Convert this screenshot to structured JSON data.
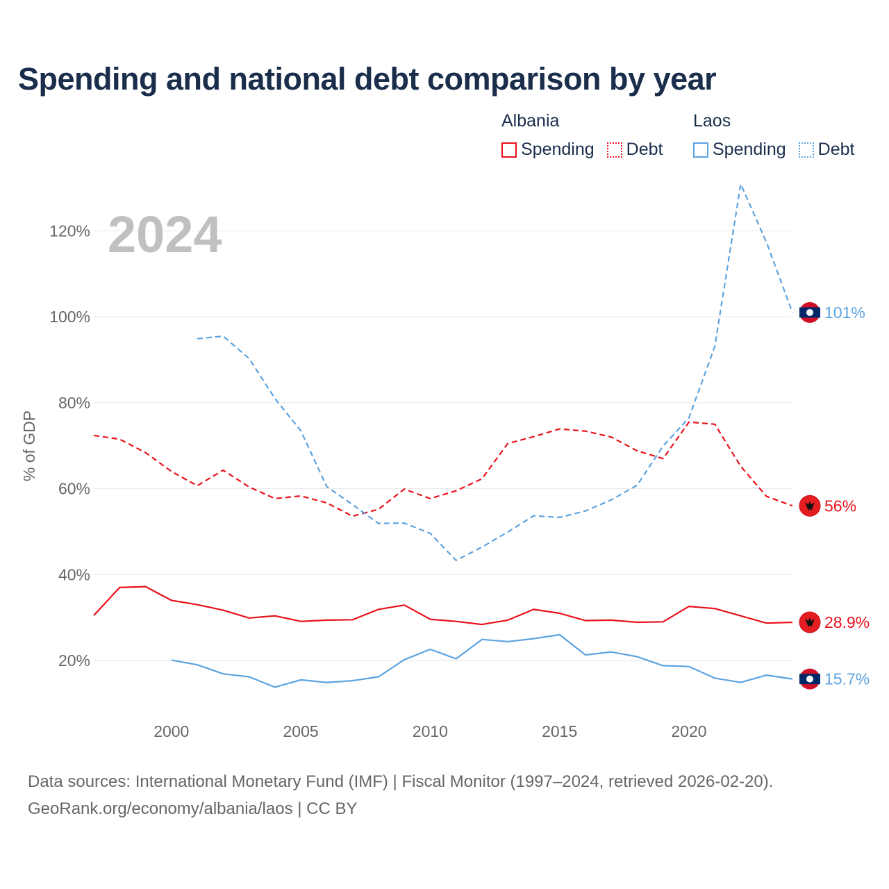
{
  "title": "Spending and national debt comparison by year",
  "legend": {
    "groups": [
      {
        "country": "Albania",
        "items": [
          "Spending",
          "Debt"
        ]
      },
      {
        "country": "Laos",
        "items": [
          "Spending",
          "Debt"
        ]
      }
    ]
  },
  "colors": {
    "albania": "#e8111c",
    "laos": "#5ba3e0",
    "year_watermark": "#c0c0c0"
  },
  "source_line1": "Data sources: International Monetary Fund (IMF) | Fiscal Monitor (1997–2024, retrieved 2026-02-20).",
  "source_line2": "GeoRank.org/economy/albania/laos | CC BY",
  "chart_data": {
    "type": "line",
    "title": "Spending and national debt comparison by year",
    "year_label": "2024",
    "ylabel": "% of GDP",
    "xlabel": "",
    "xlim": [
      1997,
      2024
    ],
    "ylim": [
      4,
      133
    ],
    "x_ticks": [
      2000,
      2005,
      2010,
      2015,
      2020
    ],
    "y_ticks": [
      20,
      40,
      60,
      80,
      100,
      120
    ],
    "y_tick_labels": [
      "20%",
      "40%",
      "60%",
      "80%",
      "100%",
      "120%"
    ],
    "grid": true,
    "series": [
      {
        "name": "Albania Spending",
        "country": "Albania",
        "metric": "Spending",
        "dashed": false,
        "flag": "albania",
        "end_label": "28.9%",
        "x": [
          1997,
          1998,
          1999,
          2000,
          2001,
          2002,
          2003,
          2004,
          2005,
          2006,
          2007,
          2008,
          2009,
          2010,
          2011,
          2012,
          2013,
          2014,
          2015,
          2016,
          2017,
          2018,
          2019,
          2020,
          2021,
          2022,
          2023,
          2024
        ],
        "values": [
          30.5,
          37.0,
          37.2,
          34.0,
          33.0,
          31.7,
          29.9,
          30.4,
          29.1,
          29.4,
          29.5,
          31.9,
          32.9,
          29.6,
          29.1,
          28.4,
          29.4,
          31.9,
          31.0,
          29.3,
          29.4,
          28.9,
          29.0,
          32.6,
          32.1,
          30.4,
          28.7,
          28.9
        ]
      },
      {
        "name": "Albania Debt",
        "country": "Albania",
        "metric": "Debt",
        "dashed": true,
        "flag": "albania",
        "end_label": "56%",
        "x": [
          1997,
          1998,
          1999,
          2000,
          2001,
          2002,
          2003,
          2004,
          2005,
          2006,
          2007,
          2008,
          2009,
          2010,
          2011,
          2012,
          2013,
          2014,
          2015,
          2016,
          2017,
          2018,
          2019,
          2020,
          2021,
          2022,
          2023,
          2024
        ],
        "values": [
          72.4,
          71.5,
          68.4,
          64.0,
          60.7,
          64.3,
          60.4,
          57.7,
          58.3,
          56.7,
          53.6,
          55.2,
          59.9,
          57.7,
          59.5,
          62.3,
          70.5,
          72.1,
          73.9,
          73.4,
          72.0,
          68.8,
          67.0,
          75.5,
          75.0,
          65.2,
          58.2,
          56.0
        ]
      },
      {
        "name": "Laos Spending",
        "country": "Laos",
        "metric": "Spending",
        "dashed": false,
        "flag": "laos",
        "end_label": "15.7%",
        "x": [
          2000,
          2001,
          2002,
          2003,
          2004,
          2005,
          2006,
          2007,
          2008,
          2009,
          2010,
          2011,
          2012,
          2013,
          2014,
          2015,
          2016,
          2017,
          2018,
          2019,
          2020,
          2021,
          2022,
          2023,
          2024
        ],
        "values": [
          20.1,
          19.0,
          16.9,
          16.2,
          13.8,
          15.5,
          14.9,
          15.3,
          16.2,
          20.2,
          22.6,
          20.4,
          24.9,
          24.4,
          25.1,
          26.0,
          21.3,
          22.0,
          20.9,
          18.8,
          18.6,
          15.9,
          14.9,
          16.6,
          15.7
        ]
      },
      {
        "name": "Laos Debt",
        "country": "Laos",
        "metric": "Debt",
        "dashed": true,
        "flag": "laos",
        "end_label": "101%",
        "x": [
          2001,
          2002,
          2003,
          2004,
          2005,
          2006,
          2007,
          2008,
          2009,
          2010,
          2011,
          2012,
          2013,
          2014,
          2015,
          2016,
          2017,
          2018,
          2019,
          2020,
          2021,
          2022,
          2023,
          2024
        ],
        "values": [
          94.9,
          95.5,
          90.3,
          81.0,
          73.5,
          60.5,
          56.3,
          51.9,
          52.0,
          49.6,
          43.3,
          46.4,
          49.9,
          53.7,
          53.3,
          54.8,
          57.4,
          60.8,
          69.9,
          76.5,
          93.1,
          130.9,
          117.3,
          101.0
        ]
      }
    ]
  }
}
